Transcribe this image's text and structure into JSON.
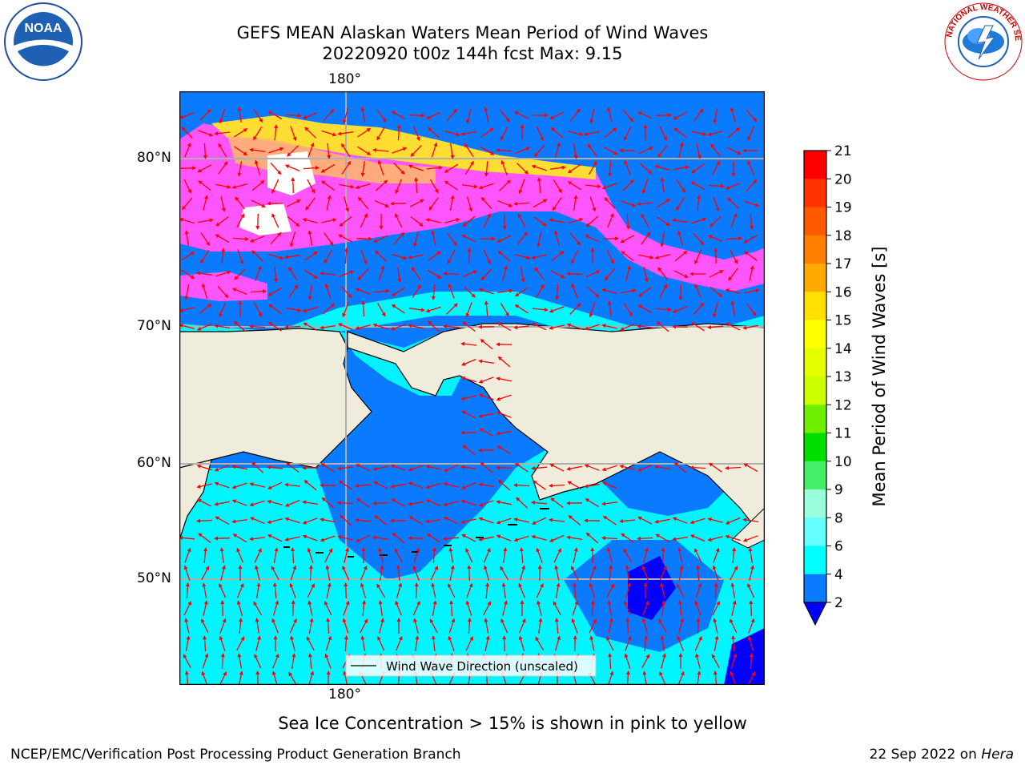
{
  "title": {
    "line1": "GEFS MEAN Alaskan Waters Mean Period of Wind Waves",
    "line2": "20220920 t00z 144h fcst   Max: 9.15"
  },
  "logos": {
    "left": {
      "text": "NOAA",
      "icon": "noaa-logo-icon"
    },
    "right": {
      "icon": "national-weather-service-logo-icon",
      "ring_text": "NATIONAL WEATHER SERVICE"
    }
  },
  "map": {
    "lon_label_top": "180°",
    "lon_label_bottom": "180°",
    "lat_labels": [
      "80°N",
      "70°N",
      "60°N",
      "50°N"
    ],
    "legend": "Wind Wave Direction (unscaled)",
    "colors": {
      "land": "#efecdc",
      "ocean_low": "#0a7bff",
      "ocean_mid": "#00ffff",
      "ice_pink": "#ff55ff",
      "ice_yellow": "#ffdd33",
      "arrow": "#ff0000"
    }
  },
  "colorbar": {
    "label": "Mean Period of Wind Waves [s]",
    "ticks": [
      "21",
      "20",
      "19",
      "18",
      "17",
      "16",
      "15",
      "14",
      "13",
      "12",
      "11",
      "10",
      "9",
      "8",
      "6",
      "4",
      "2"
    ],
    "colors": [
      "#ff0000",
      "#ff3300",
      "#ff5a00",
      "#ff8000",
      "#ffaa00",
      "#ffe000",
      "#ffff00",
      "#e6ff00",
      "#ccff00",
      "#70ee00",
      "#00e000",
      "#44ee66",
      "#99ffdd",
      "#66ffff",
      "#00ffff",
      "#0a7bff",
      "#0000ff"
    ]
  },
  "note": "Sea Ice Concentration > 15% is shown in pink to yellow",
  "footer": {
    "credit": "NCEP/EMC/Verification Post Processing Product Generation Branch",
    "date": "22 Sep 2022 on",
    "machine": "Hera"
  }
}
